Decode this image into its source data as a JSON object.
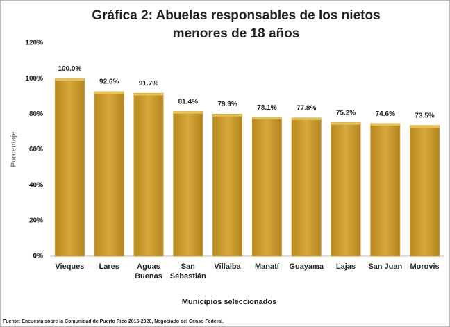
{
  "chart_data": {
    "type": "bar",
    "title": "Gráfica 2: Abuelas responsables de los nietos menores de 18 años",
    "categories": [
      "Vieques",
      "Lares",
      "Aguas Buenas",
      "San Sebastián",
      "Villalba",
      "Manatí",
      "Guayama",
      "Lajas",
      "San Juan",
      "Morovis"
    ],
    "values": [
      100.0,
      92.6,
      91.7,
      81.4,
      79.9,
      78.1,
      77.8,
      75.2,
      74.6,
      73.5
    ],
    "value_labels": [
      "100.0%",
      "92.6%",
      "91.7%",
      "81.4%",
      "79.9%",
      "78.1%",
      "77.8%",
      "75.2%",
      "74.6%",
      "73.5%"
    ],
    "color": "#c99a2e",
    "ylim": [
      0,
      120
    ],
    "yticks": [
      {
        "value": 0,
        "label": "0%"
      },
      {
        "value": 20,
        "label": "20%"
      },
      {
        "value": 40,
        "label": "40%"
      },
      {
        "value": 60,
        "label": "60%"
      },
      {
        "value": 80,
        "label": "80%"
      },
      {
        "value": 100,
        "label": "100%"
      },
      {
        "value": 120,
        "label": "120%"
      }
    ],
    "ylabel": "Porcentaje",
    "xlabel": "Municipios seleccionados",
    "source": "Fuente: Encuesta sobre la Comunidad de Puerto Rico 2016-2020, Negociado del Censo Federal.",
    "grid": false
  }
}
